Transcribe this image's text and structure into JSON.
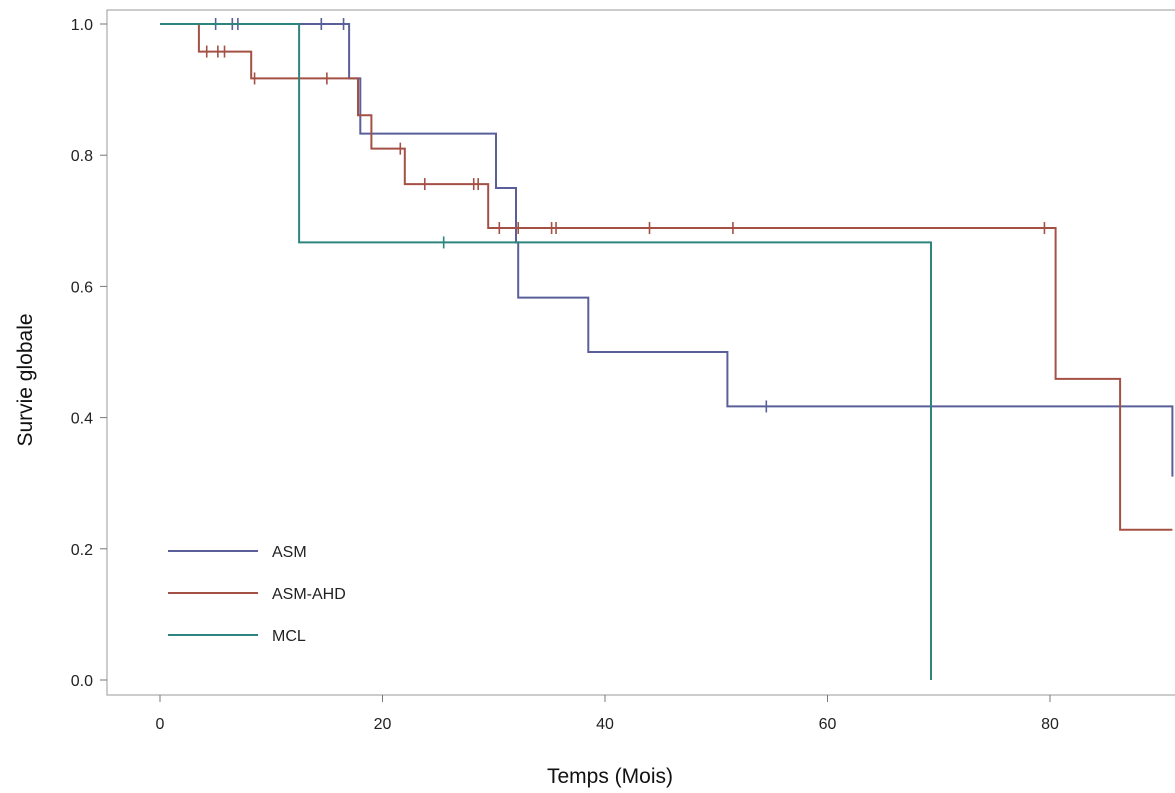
{
  "chart_data": {
    "type": "line",
    "xlabel": "Temps (Mois)",
    "ylabel": "Survie globale",
    "xlim": [
      -4,
      91
    ],
    "ylim": [
      -0.02,
      1.02
    ],
    "x_ticks": [
      0,
      20,
      40,
      60,
      80
    ],
    "y_ticks": [
      0.0,
      0.2,
      0.4,
      0.6,
      0.8,
      1.0
    ],
    "x_tick_labels": [
      "0",
      "20",
      "40",
      "60",
      "80"
    ],
    "y_tick_labels": [
      "0.0",
      "0.2",
      "0.4",
      "0.6",
      "0.8",
      "1.0"
    ],
    "legend_position": "bottom-left",
    "series": [
      {
        "name": "ASM",
        "color": "#5a5f9a",
        "step_points": [
          [
            0,
            1.0
          ],
          [
            17,
            1.0
          ],
          [
            17,
            0.917
          ],
          [
            18,
            0.917
          ],
          [
            18,
            0.833
          ],
          [
            30.2,
            0.833
          ],
          [
            30.2,
            0.75
          ],
          [
            32,
            0.75
          ],
          [
            32,
            0.667
          ],
          [
            32.2,
            0.667
          ],
          [
            32.2,
            0.583
          ],
          [
            38.5,
            0.583
          ],
          [
            38.5,
            0.5
          ],
          [
            51,
            0.5
          ],
          [
            51,
            0.417
          ],
          [
            91,
            0.417
          ],
          [
            91,
            0.31
          ]
        ],
        "censored": [
          [
            5,
            1.0
          ],
          [
            6.5,
            1.0
          ],
          [
            7,
            1.0
          ],
          [
            14.5,
            1.0
          ],
          [
            16.5,
            1.0
          ],
          [
            54.5,
            0.417
          ]
        ]
      },
      {
        "name": "ASM-AHD",
        "color": "#a45044",
        "step_points": [
          [
            0,
            1.0
          ],
          [
            3.5,
            1.0
          ],
          [
            3.5,
            0.958
          ],
          [
            8.2,
            0.958
          ],
          [
            8.2,
            0.917
          ],
          [
            17.8,
            0.917
          ],
          [
            17.8,
            0.861
          ],
          [
            19,
            0.861
          ],
          [
            19,
            0.81
          ],
          [
            22,
            0.81
          ],
          [
            22,
            0.756
          ],
          [
            29.5,
            0.756
          ],
          [
            29.5,
            0.689
          ],
          [
            80.5,
            0.689
          ],
          [
            80.5,
            0.459
          ],
          [
            86.3,
            0.459
          ],
          [
            86.3,
            0.229
          ],
          [
            91,
            0.229
          ]
        ],
        "censored": [
          [
            4.2,
            0.958
          ],
          [
            5.2,
            0.958
          ],
          [
            5.8,
            0.958
          ],
          [
            8.5,
            0.917
          ],
          [
            15,
            0.917
          ],
          [
            21.6,
            0.81
          ],
          [
            23.8,
            0.756
          ],
          [
            28.2,
            0.756
          ],
          [
            28.6,
            0.756
          ],
          [
            30.5,
            0.689
          ],
          [
            32.2,
            0.689
          ],
          [
            35.2,
            0.689
          ],
          [
            35.6,
            0.689
          ],
          [
            44,
            0.689
          ],
          [
            51.5,
            0.689
          ],
          [
            79.5,
            0.689
          ]
        ]
      },
      {
        "name": "MCL",
        "color": "#2e8580",
        "step_points": [
          [
            0,
            1.0
          ],
          [
            12.5,
            1.0
          ],
          [
            12.5,
            0.667
          ],
          [
            69.3,
            0.667
          ],
          [
            69.3,
            0.0
          ]
        ],
        "censored": [
          [
            25.5,
            0.667
          ]
        ]
      }
    ]
  }
}
